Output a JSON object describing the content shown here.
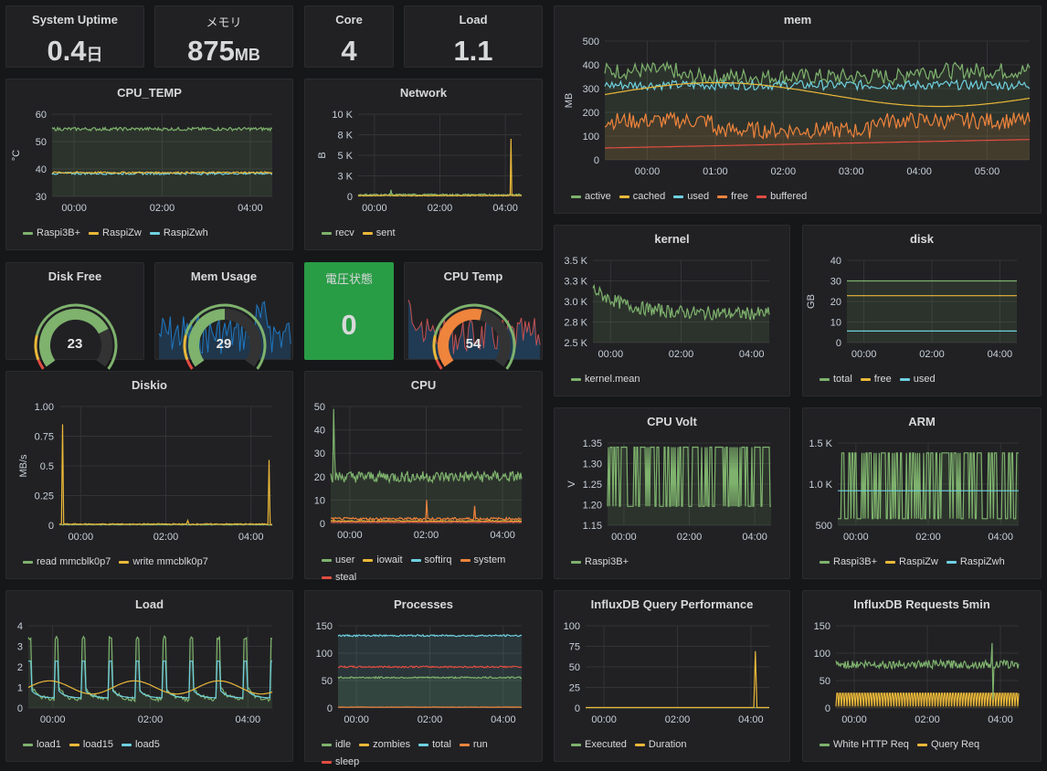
{
  "colors": {
    "green": "#7eb26d",
    "yellow": "#eab839",
    "cyan": "#6ed0e0",
    "orange": "#ef843c",
    "red": "#e24d42",
    "blue": "#1f78c1",
    "statgreen": "#299c46"
  },
  "stats": {
    "uptime": {
      "title": "System Uptime",
      "value": "0.4",
      "unit": "日"
    },
    "memory": {
      "title": "メモリ",
      "value": "875",
      "unit": "MB"
    },
    "core": {
      "title": "Core",
      "value": "4"
    },
    "load": {
      "title": "Load",
      "value": "1.1"
    },
    "voltage": {
      "title": "電圧状態",
      "value": "0"
    }
  },
  "gauges": {
    "disk_free": {
      "title": "Disk Free",
      "value": "23",
      "fraction": 0.75
    },
    "mem_usage": {
      "title": "Mem Usage",
      "value": "29",
      "fraction": 0.5
    },
    "cpu_temp": {
      "title": "CPU Temp",
      "value": "54",
      "fraction": 0.55
    }
  },
  "panels": {
    "mem": {
      "title": "mem",
      "ylabel": "MB",
      "yticks": [
        "500",
        "400",
        "300",
        "200",
        "100",
        "0"
      ],
      "xticks": [
        "00:00",
        "01:00",
        "02:00",
        "03:00",
        "04:00",
        "05:00"
      ],
      "legend": [
        {
          "label": "active",
          "color": "green"
        },
        {
          "label": "cached",
          "color": "yellow"
        },
        {
          "label": "used",
          "color": "cyan"
        },
        {
          "label": "free",
          "color": "orange"
        },
        {
          "label": "buffered",
          "color": "red"
        }
      ]
    },
    "cpu_temp": {
      "title": "CPU_TEMP",
      "ylabel": "°C",
      "yticks": [
        "60",
        "50",
        "40",
        "30"
      ],
      "xticks": [
        "00:00",
        "02:00",
        "04:00"
      ],
      "legend": [
        {
          "label": "Raspi3B+",
          "color": "green"
        },
        {
          "label": "RaspiZw",
          "color": "yellow"
        },
        {
          "label": "RaspiZwh",
          "color": "cyan"
        }
      ]
    },
    "network": {
      "title": "Network",
      "ylabel": "B",
      "yticks": [
        "10 K",
        "8 K",
        "5 K",
        "3 K",
        "0"
      ],
      "xticks": [
        "00:00",
        "02:00",
        "04:00"
      ],
      "legend": [
        {
          "label": "recv",
          "color": "green"
        },
        {
          "label": "sent",
          "color": "yellow"
        }
      ]
    },
    "kernel": {
      "title": "kernel",
      "yticks": [
        "3.5 K",
        "3.3 K",
        "3.0 K",
        "2.8 K",
        "2.5 K"
      ],
      "xticks": [
        "00:00",
        "02:00",
        "04:00"
      ],
      "legend": [
        {
          "label": "kernel.mean",
          "color": "green"
        }
      ]
    },
    "disk": {
      "title": "disk",
      "ylabel": "GB",
      "yticks": [
        "40",
        "30",
        "20",
        "10",
        "0"
      ],
      "xticks": [
        "00:00",
        "02:00",
        "04:00"
      ],
      "legend": [
        {
          "label": "total",
          "color": "green"
        },
        {
          "label": "free",
          "color": "yellow"
        },
        {
          "label": "used",
          "color": "cyan"
        }
      ]
    },
    "diskio": {
      "title": "Diskio",
      "ylabel": "MB/s",
      "yticks": [
        "1.00",
        "0.75",
        "0.5",
        "0.25",
        "0"
      ],
      "xticks": [
        "00:00",
        "02:00",
        "04:00"
      ],
      "legend": [
        {
          "label": "read mmcblk0p7",
          "color": "green"
        },
        {
          "label": "write mmcblk0p7",
          "color": "yellow"
        }
      ]
    },
    "cpu": {
      "title": "CPU",
      "yticks": [
        "50",
        "40",
        "30",
        "20",
        "10",
        "0"
      ],
      "xticks": [
        "00:00",
        "02:00",
        "04:00"
      ],
      "legend": [
        {
          "label": "user",
          "color": "green"
        },
        {
          "label": "iowait",
          "color": "yellow"
        },
        {
          "label": "softirq",
          "color": "cyan"
        },
        {
          "label": "system",
          "color": "orange"
        },
        {
          "label": "steal",
          "color": "red"
        }
      ]
    },
    "cpu_volt": {
      "title": "CPU Volt",
      "ylabel": "V",
      "yticks": [
        "1.35",
        "1.30",
        "1.25",
        "1.20",
        "1.15"
      ],
      "xticks": [
        "00:00",
        "02:00",
        "04:00"
      ],
      "legend": [
        {
          "label": "Raspi3B+",
          "color": "green"
        }
      ]
    },
    "arm": {
      "title": "ARM",
      "yticks": [
        "1.5 K",
        "1.0 K",
        "500"
      ],
      "xticks": [
        "00:00",
        "02:00",
        "04:00"
      ],
      "legend": [
        {
          "label": "Raspi3B+",
          "color": "green"
        },
        {
          "label": "RaspiZw",
          "color": "yellow"
        },
        {
          "label": "RaspiZwh",
          "color": "cyan"
        }
      ]
    },
    "load": {
      "title": "Load",
      "yticks": [
        "4",
        "3",
        "2",
        "1",
        "0"
      ],
      "xticks": [
        "00:00",
        "02:00",
        "04:00"
      ],
      "legend": [
        {
          "label": "load1",
          "color": "green"
        },
        {
          "label": "load15",
          "color": "yellow"
        },
        {
          "label": "load5",
          "color": "cyan"
        }
      ]
    },
    "processes": {
      "title": "Processes",
      "yticks": [
        "150",
        "100",
        "50",
        "0"
      ],
      "xticks": [
        "00:00",
        "02:00",
        "04:00"
      ],
      "legend": [
        {
          "label": "idle",
          "color": "green"
        },
        {
          "label": "zombies",
          "color": "yellow"
        },
        {
          "label": "total",
          "color": "cyan"
        },
        {
          "label": "run",
          "color": "orange"
        },
        {
          "label": "sleep",
          "color": "red"
        }
      ]
    },
    "influx_query": {
      "title": "InfluxDB Query Performance",
      "yticks": [
        "100",
        "75",
        "50",
        "25",
        "0"
      ],
      "xticks": [
        "00:00",
        "02:00",
        "04:00"
      ],
      "legend": [
        {
          "label": "Executed",
          "color": "green"
        },
        {
          "label": "Duration",
          "color": "yellow"
        }
      ]
    },
    "influx_req": {
      "title": "InfluxDB Requests 5min",
      "yticks": [
        "150",
        "100",
        "50",
        "0"
      ],
      "xticks": [
        "00:00",
        "02:00",
        "04:00"
      ],
      "legend": [
        {
          "label": "White HTTP Req",
          "color": "green"
        },
        {
          "label": "Query Req",
          "color": "yellow"
        }
      ]
    }
  }
}
